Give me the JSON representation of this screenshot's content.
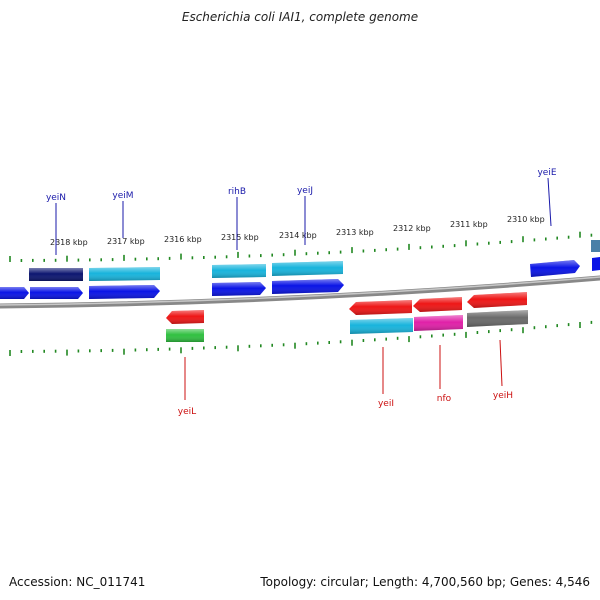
{
  "title": "Escherichia coli IAI1, complete genome",
  "footer": {
    "accession": "Accession: NC_011741",
    "summary": "Topology: circular; Length: 4,700,560 bp; Genes: 4,546"
  },
  "ticks": [
    "2318 kbp",
    "2317 kbp",
    "2316 kbp",
    "2315 kbp",
    "2314 kbp",
    "2313 kbp",
    "2312 kbp",
    "2311 kbp",
    "2310 kbp"
  ],
  "top_labels": [
    "yeiN",
    "yeiM",
    "rihB",
    "yeiJ",
    "yeiE"
  ],
  "bottom_labels": [
    "yeiL",
    "yeiI",
    "nfo",
    "yeiH"
  ],
  "colors": {
    "blue": "#0a14e6",
    "dark_navy": "#0c1670",
    "cyan": "#18b4dc",
    "red": "#ee1616",
    "green": "#30c040",
    "magenta": "#e020a8",
    "gray": "#6a6a6a",
    "steel": "#4a80a8",
    "tick_green": "#228822",
    "backbone": "#8a8a8a",
    "label_blue": "#1a1aaa",
    "label_red": "#cc1010"
  }
}
